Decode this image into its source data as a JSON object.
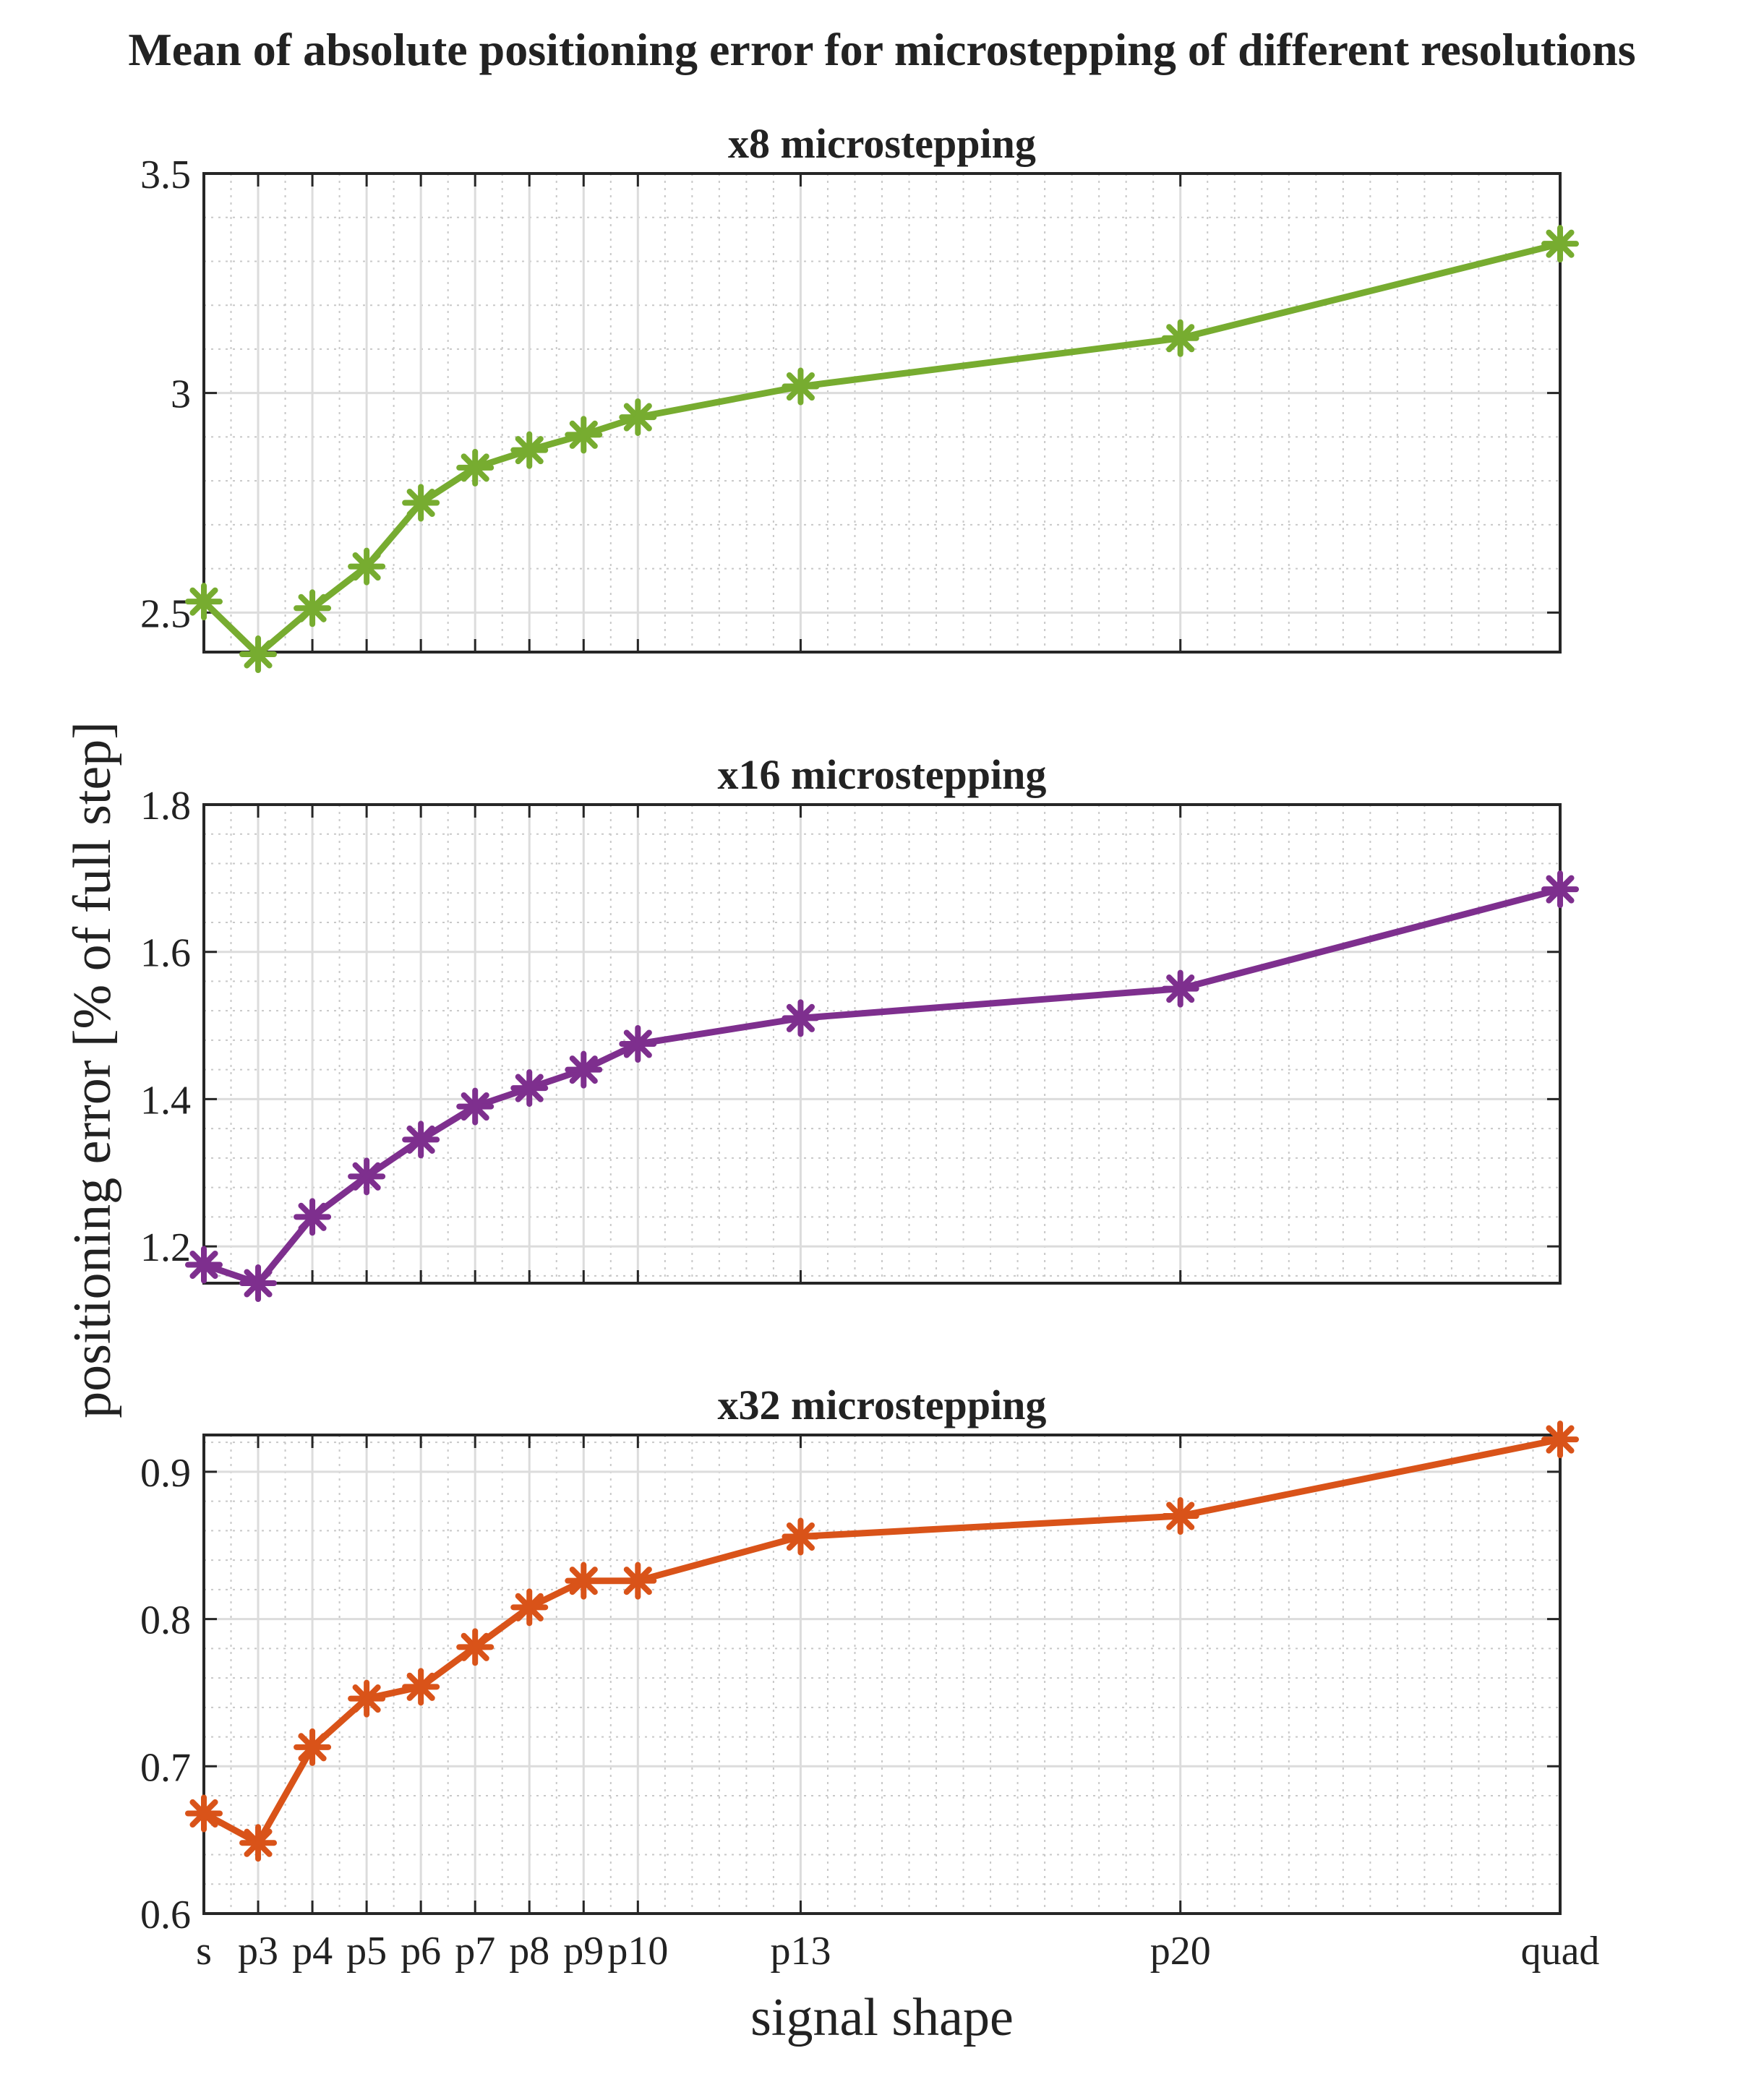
{
  "figure_title": "Mean of absolute positioning error for microstepping of different resolutions",
  "shared_ylabel": "positioning error [% of full step]",
  "shared_xlabel": "signal shape",
  "chart_data": [
    {
      "type": "line",
      "title": "x8 microstepping",
      "xlabel": "signal shape",
      "ylabel": "positioning error [% of full step]",
      "categories": [
        "s",
        "p3",
        "p4",
        "p5",
        "p6",
        "p7",
        "p8",
        "p9",
        "p10",
        "p13",
        "p20",
        "quad"
      ],
      "x": [
        2,
        3,
        4,
        5,
        6,
        7,
        8,
        9,
        10,
        13,
        20,
        27
      ],
      "xlim": [
        2,
        27
      ],
      "ylim": [
        2.41,
        3.5
      ],
      "yticks": [
        2.5,
        3,
        3.5
      ],
      "ytick_labels": [
        "2.5",
        "3",
        "3.5"
      ],
      "grid": true,
      "minor_grid": true,
      "color": "#77ac30",
      "marker": "asterisk",
      "series": [
        {
          "values": [
            2.525,
            2.405,
            2.51,
            2.605,
            2.75,
            2.83,
            2.87,
            2.905,
            2.945,
            3.015,
            3.125,
            3.34
          ]
        }
      ]
    },
    {
      "type": "line",
      "title": "x16 microstepping",
      "xlabel": "signal shape",
      "ylabel": "positioning error [% of full step]",
      "categories": [
        "s",
        "p3",
        "p4",
        "p5",
        "p6",
        "p7",
        "p8",
        "p9",
        "p10",
        "p13",
        "p20",
        "quad"
      ],
      "x": [
        2,
        3,
        4,
        5,
        6,
        7,
        8,
        9,
        10,
        13,
        20,
        27
      ],
      "xlim": [
        2,
        27
      ],
      "ylim": [
        1.15,
        1.8
      ],
      "yticks": [
        1.2,
        1.4,
        1.6,
        1.8
      ],
      "ytick_labels": [
        "1.2",
        "1.4",
        "1.6",
        "1.8"
      ],
      "grid": true,
      "minor_grid": true,
      "color": "#7e2f8e",
      "marker": "asterisk",
      "series": [
        {
          "values": [
            1.175,
            1.15,
            1.24,
            1.295,
            1.345,
            1.39,
            1.415,
            1.44,
            1.475,
            1.51,
            1.55,
            1.685
          ]
        }
      ]
    },
    {
      "type": "line",
      "title": "x32 microstepping",
      "xlabel": "signal shape",
      "ylabel": "positioning error [% of full step]",
      "categories": [
        "s",
        "p3",
        "p4",
        "p5",
        "p6",
        "p7",
        "p8",
        "p9",
        "p10",
        "p13",
        "p20",
        "quad"
      ],
      "x": [
        2,
        3,
        4,
        5,
        6,
        7,
        8,
        9,
        10,
        13,
        20,
        27
      ],
      "xlim": [
        2,
        27
      ],
      "ylim": [
        0.6,
        0.925
      ],
      "yticks": [
        0.6,
        0.7,
        0.8,
        0.9
      ],
      "ytick_labels": [
        "0.6",
        "0.7",
        "0.8",
        "0.9"
      ],
      "grid": true,
      "minor_grid": true,
      "color": "#d95319",
      "marker": "asterisk",
      "series": [
        {
          "values": [
            0.668,
            0.648,
            0.713,
            0.746,
            0.754,
            0.781,
            0.808,
            0.826,
            0.826,
            0.856,
            0.87,
            0.922
          ]
        }
      ]
    }
  ]
}
